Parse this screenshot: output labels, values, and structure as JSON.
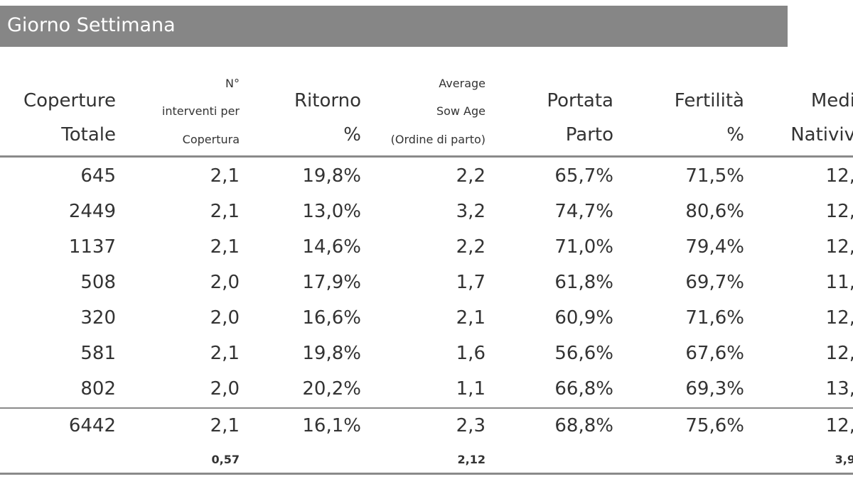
{
  "header": {
    "title": "Giorno Settimana"
  },
  "table": {
    "columns": [
      [
        "Coperture",
        "Totale"
      ],
      [
        "N°",
        "interventi per",
        "Copertura"
      ],
      [
        "Ritorno",
        "%"
      ],
      [
        "Average",
        "Sow Age",
        "(Ordine di parto)"
      ],
      [
        "Portata",
        "Parto"
      ],
      [
        "Fertilità",
        "%"
      ],
      [
        "Medi",
        "Nativiv"
      ]
    ],
    "rows": [
      [
        "645",
        "2,1",
        "19,8%",
        "2,2",
        "65,7%",
        "71,5%",
        "12,"
      ],
      [
        "2449",
        "2,1",
        "13,0%",
        "3,2",
        "74,7%",
        "80,6%",
        "12,"
      ],
      [
        "1137",
        "2,1",
        "14,6%",
        "2,2",
        "71,0%",
        "79,4%",
        "12,"
      ],
      [
        "508",
        "2,0",
        "17,9%",
        "1,7",
        "61,8%",
        "69,7%",
        "11,"
      ],
      [
        "320",
        "2,0",
        "16,6%",
        "2,1",
        "60,9%",
        "71,6%",
        "12,"
      ],
      [
        "581",
        "2,1",
        "19,8%",
        "1,6",
        "56,6%",
        "67,6%",
        "12,"
      ],
      [
        "802",
        "2,0",
        "20,2%",
        "1,1",
        "66,8%",
        "69,3%",
        "13,"
      ]
    ],
    "total": [
      "6442",
      "2,1",
      "16,1%",
      "2,3",
      "68,8%",
      "75,6%",
      "12,"
    ],
    "footer": [
      null,
      "0,57",
      null,
      "2,12",
      null,
      null,
      "3,9"
    ]
  }
}
